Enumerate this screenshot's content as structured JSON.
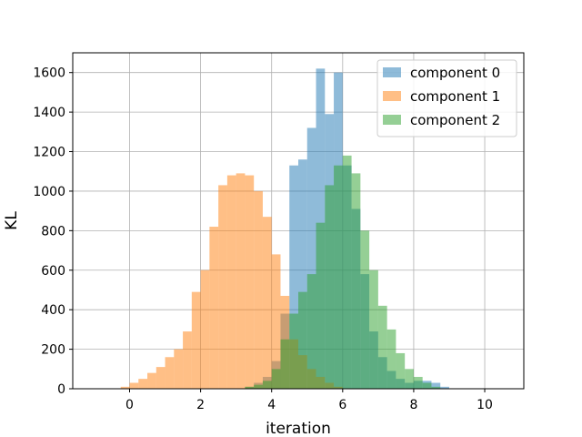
{
  "chart_data": {
    "type": "bar",
    "xlabel": "iteration",
    "ylabel": "KL",
    "xlim": [
      -1.6,
      11.1
    ],
    "ylim": [
      0,
      1700
    ],
    "xticks": [
      0,
      2,
      4,
      6,
      8,
      10
    ],
    "yticks": [
      0,
      200,
      400,
      600,
      800,
      1000,
      1200,
      1400,
      1600
    ],
    "grid": true,
    "legend_position": "top-right",
    "bin_width": 0.25,
    "series": [
      {
        "name": "component 0",
        "color": "#1f77b4",
        "opacity": 0.5,
        "bins": [
          [
            3.25,
            10
          ],
          [
            3.5,
            30
          ],
          [
            3.75,
            60
          ],
          [
            4.0,
            140
          ],
          [
            4.25,
            380
          ],
          [
            4.5,
            1130
          ],
          [
            4.75,
            1160
          ],
          [
            5.0,
            1320
          ],
          [
            5.25,
            1620
          ],
          [
            5.5,
            1390
          ],
          [
            5.75,
            1600
          ],
          [
            6.0,
            1130
          ],
          [
            6.25,
            910
          ],
          [
            6.5,
            580
          ],
          [
            6.75,
            290
          ],
          [
            7.0,
            160
          ],
          [
            7.25,
            90
          ],
          [
            7.5,
            50
          ],
          [
            7.75,
            30
          ],
          [
            8.0,
            40
          ],
          [
            8.25,
            40
          ],
          [
            8.5,
            30
          ],
          [
            8.75,
            10
          ]
        ]
      },
      {
        "name": "component 1",
        "color": "#ff7f0e",
        "opacity": 0.5,
        "bins": [
          [
            -0.25,
            10
          ],
          [
            0.0,
            30
          ],
          [
            0.25,
            50
          ],
          [
            0.5,
            80
          ],
          [
            0.75,
            110
          ],
          [
            1.0,
            160
          ],
          [
            1.25,
            200
          ],
          [
            1.5,
            290
          ],
          [
            1.75,
            490
          ],
          [
            2.0,
            600
          ],
          [
            2.25,
            820
          ],
          [
            2.5,
            1030
          ],
          [
            2.75,
            1080
          ],
          [
            3.0,
            1090
          ],
          [
            3.25,
            1080
          ],
          [
            3.5,
            1000
          ],
          [
            3.75,
            870
          ],
          [
            4.0,
            680
          ],
          [
            4.25,
            470
          ],
          [
            4.5,
            250
          ],
          [
            4.75,
            170
          ],
          [
            5.0,
            100
          ],
          [
            5.25,
            60
          ],
          [
            5.5,
            30
          ],
          [
            5.75,
            10
          ]
        ]
      },
      {
        "name": "component 2",
        "color": "#2ca02c",
        "opacity": 0.5,
        "bins": [
          [
            3.25,
            10
          ],
          [
            3.5,
            20
          ],
          [
            3.75,
            40
          ],
          [
            4.0,
            100
          ],
          [
            4.25,
            250
          ],
          [
            4.5,
            380
          ],
          [
            4.75,
            490
          ],
          [
            5.0,
            580
          ],
          [
            5.25,
            840
          ],
          [
            5.5,
            1030
          ],
          [
            5.75,
            1130
          ],
          [
            6.0,
            1180
          ],
          [
            6.25,
            1090
          ],
          [
            6.5,
            800
          ],
          [
            6.75,
            600
          ],
          [
            7.0,
            420
          ],
          [
            7.25,
            300
          ],
          [
            7.5,
            180
          ],
          [
            7.75,
            100
          ],
          [
            8.0,
            60
          ],
          [
            8.25,
            30
          ],
          [
            8.5,
            10
          ]
        ]
      }
    ]
  }
}
